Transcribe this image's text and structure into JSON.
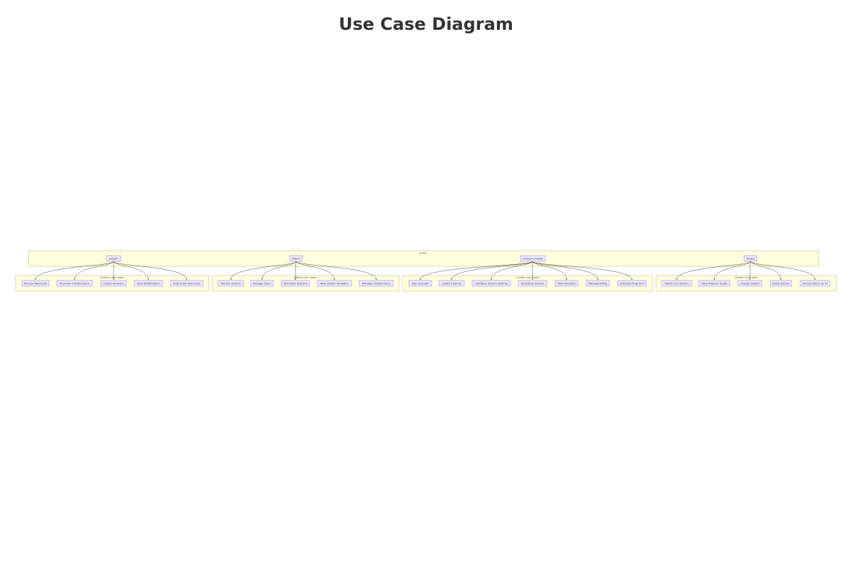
{
  "title": "Use Case Diagram",
  "actors_cluster": {
    "label": "Actors"
  },
  "groups": [
    {
      "actor": "System",
      "cluster_label": "System Use Cases",
      "use_cases": [
        "Process Payments",
        "Provision Infrastructure",
        "Collect Analytics",
        "Send Notifications",
        "Auto-scale Resources"
      ]
    },
    {
      "actor": "Admin",
      "cluster_label": "Admin Use Cases",
      "use_cases": [
        "Monitor System",
        "Manage Users",
        "Terminate Streams",
        "View System Analytics",
        "Manage Infrastructure"
      ]
    },
    {
      "actor": "Content Creator",
      "cluster_label": "Creator Use Cases",
      "use_cases": [
        "Sign Up/Login",
        "Create Channel",
        "Configure Stream Settings",
        "Start/Stop Stream",
        "View Analytics",
        "Manage Billing",
        "Schedule Programs"
      ]
    },
    {
      "actor": "Viewer",
      "cluster_label": "Viewer Use Cases",
      "use_cases": [
        "Watch Live Stream",
        "View Program Guide",
        "Change Quality",
        "Share Stream",
        "Access Catch-up TV"
      ]
    }
  ],
  "colors": {
    "cluster_fill": "#ffffde",
    "node_fill": "#ececff",
    "node_stroke": "#9370db",
    "edge": "#333333"
  }
}
